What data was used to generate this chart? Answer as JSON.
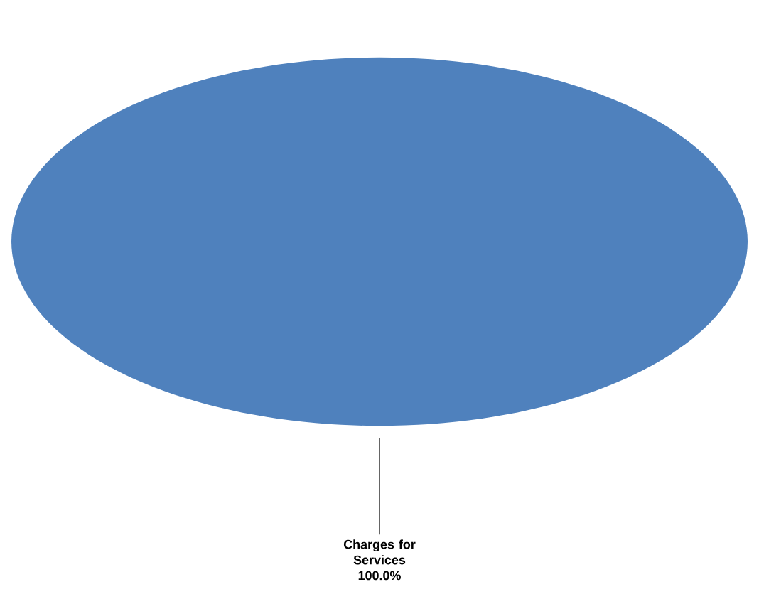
{
  "chart_data": {
    "type": "pie",
    "categories": [
      "Charges for Services"
    ],
    "values": [
      100
    ],
    "colors": [
      "#4f81bd"
    ],
    "value_labels": [
      "100.0%"
    ]
  }
}
